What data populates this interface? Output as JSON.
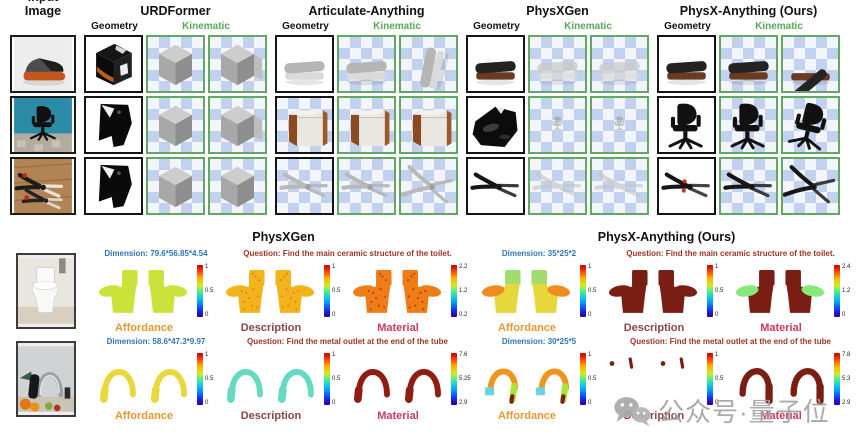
{
  "top": {
    "input_header": "Input Image",
    "methods": [
      {
        "name": "URDFormer",
        "bold": false
      },
      {
        "name": "Articulate-Anything",
        "bold": false
      },
      {
        "name": "PhysXGen",
        "bold": false
      },
      {
        "name": "PhysX-Anything (Ours)",
        "bold": true
      }
    ],
    "sub_geometry": "Geometry",
    "sub_kinematic": "Kinematic",
    "rows": [
      {
        "object": "stapler",
        "input_visual": "photo-stapler",
        "cells": [
          {
            "visual": "cube-textured",
            "bg": "white",
            "border": "geometry"
          },
          {
            "visual": "cube-gray",
            "bg": "checker",
            "border": "kinematic"
          },
          {
            "visual": "cube-gray-open",
            "bg": "checker",
            "border": "kinematic"
          },
          {
            "visual": "stapler-lightgray",
            "bg": "white",
            "border": "geometry"
          },
          {
            "visual": "stapler-lightgray",
            "bg": "checker",
            "border": "kinematic"
          },
          {
            "visual": "stapler-up-lightgray",
            "bg": "checker",
            "border": "kinematic"
          },
          {
            "visual": "stapler-dark",
            "bg": "white",
            "border": "geometry"
          },
          {
            "visual": "stapler-pale",
            "bg": "checker",
            "border": "kinematic"
          },
          {
            "visual": "stapler-pale",
            "bg": "checker",
            "border": "kinematic"
          },
          {
            "visual": "stapler-dark",
            "bg": "white",
            "border": "geometry"
          },
          {
            "visual": "stapler-dark",
            "bg": "checker",
            "border": "kinematic"
          },
          {
            "visual": "stapler-dark-open",
            "bg": "checker",
            "border": "kinematic"
          }
        ]
      },
      {
        "object": "chair",
        "input_visual": "photo-chair",
        "cells": [
          {
            "visual": "blob-dark",
            "bg": "white",
            "border": "geometry"
          },
          {
            "visual": "cube-gray",
            "bg": "checker",
            "border": "kinematic"
          },
          {
            "visual": "cube-gray-open",
            "bg": "checker",
            "border": "kinematic"
          },
          {
            "visual": "cabinet",
            "bg": "checker",
            "border": "geometry"
          },
          {
            "visual": "cabinet",
            "bg": "checker",
            "border": "kinematic"
          },
          {
            "visual": "cabinet",
            "bg": "checker",
            "border": "kinematic"
          },
          {
            "visual": "chair-blob",
            "bg": "white",
            "border": "geometry"
          },
          {
            "visual": "chair-tiny",
            "bg": "checker",
            "border": "kinematic"
          },
          {
            "visual": "chair-tiny",
            "bg": "checker",
            "border": "kinematic"
          },
          {
            "visual": "chair-black",
            "bg": "white",
            "border": "geometry"
          },
          {
            "visual": "chair-black",
            "bg": "checker",
            "border": "kinematic"
          },
          {
            "visual": "chair-black-tilt",
            "bg": "checker",
            "border": "kinematic"
          }
        ]
      },
      {
        "object": "pliers",
        "input_visual": "photo-pliers",
        "cells": [
          {
            "visual": "blob-dark",
            "bg": "white",
            "border": "geometry"
          },
          {
            "visual": "cube-gray",
            "bg": "checker",
            "border": "kinematic"
          },
          {
            "visual": "cube-gray",
            "bg": "checker",
            "border": "kinematic"
          },
          {
            "visual": "pliers-gray",
            "bg": "checker",
            "border": "geometry"
          },
          {
            "visual": "pliers-gray",
            "bg": "checker",
            "border": "kinematic"
          },
          {
            "visual": "pliers-gray-open",
            "bg": "checker",
            "border": "kinematic"
          },
          {
            "visual": "pliers-dark",
            "bg": "white",
            "border": "geometry"
          },
          {
            "visual": "pliers-pale",
            "bg": "checker",
            "border": "kinematic"
          },
          {
            "visual": "pliers-pale",
            "bg": "checker",
            "border": "kinematic"
          },
          {
            "visual": "pliers-dark-red",
            "bg": "white",
            "border": "geometry"
          },
          {
            "visual": "pliers-dark",
            "bg": "checker",
            "border": "kinematic"
          },
          {
            "visual": "pliers-dark-open",
            "bg": "checker",
            "border": "kinematic"
          }
        ]
      }
    ]
  },
  "bottom": {
    "panel_titles": [
      {
        "title": "PhysXGen",
        "bold": false
      },
      {
        "title": "PhysX-Anything (Ours)",
        "bold": true
      }
    ],
    "group_label_colors": {
      "Affordance": "#e8962e",
      "Description": "#8a4545",
      "Material": "#cc3a5c"
    },
    "rows": [
      {
        "object": "toilet",
        "input_visual": "photo-toilet",
        "sides": [
          {
            "dimension": "Dimension: 79.6*56.85*4.54",
            "question": "Question: Find the main ceramic structure of the toilet.",
            "groups": [
              {
                "label": "Affordance",
                "visual": "toilet",
                "scheme": "toilet_affordance_gen",
                "cbar": [
                  "1",
                  "0.5",
                  "0"
                ]
              },
              {
                "label": "Description",
                "visual": "toilet",
                "scheme": "toilet_description_gen",
                "cbar": [
                  "1",
                  "0.5",
                  "0"
                ]
              },
              {
                "label": "Material",
                "visual": "toilet",
                "scheme": "toilet_material_gen",
                "cbar": [
                  "2.2",
                  "1.2",
                  "0.2"
                ]
              }
            ]
          },
          {
            "dimension": "Dimension: 35*25*2",
            "question": "Question: Find the main ceramic structure of the toilet.",
            "groups": [
              {
                "label": "Affordance",
                "visual": "toilet",
                "scheme": "toilet_affordance_ours",
                "cbar": [
                  "1",
                  "0.5",
                  "0"
                ]
              },
              {
                "label": "Description",
                "visual": "toilet",
                "scheme": "toilet_description_ours",
                "cbar": [
                  "1",
                  "0.5",
                  "0"
                ]
              },
              {
                "label": "Material",
                "visual": "toilet",
                "scheme": "toilet_material_ours",
                "cbar": [
                  "2.4",
                  "1.2",
                  "0"
                ]
              }
            ]
          }
        ]
      },
      {
        "object": "faucet",
        "input_visual": "photo-faucet",
        "sides": [
          {
            "dimension": "Dimension: 58.6*47.3*9.97",
            "question": "Question: Find the metal outlet at the end of the tube",
            "groups": [
              {
                "label": "Affordance",
                "visual": "faucet",
                "scheme": "faucet_affordance_gen",
                "cbar": [
                  "1",
                  "0.5",
                  "0"
                ]
              },
              {
                "label": "Description",
                "visual": "faucet",
                "scheme": "faucet_description_gen",
                "cbar": [
                  "1",
                  "0.5",
                  "0"
                ]
              },
              {
                "label": "Material",
                "visual": "faucet",
                "scheme": "faucet_material_gen",
                "cbar": [
                  "7.6",
                  "5.25",
                  "2.9"
                ]
              }
            ]
          },
          {
            "dimension": "Dimension: 30*25*5",
            "question": "Question: Find the metal outlet at the end of the tube",
            "groups": [
              {
                "label": "Affordance",
                "visual": "faucet",
                "scheme": "faucet_affordance_ours",
                "cbar": [
                  "1",
                  "0.5",
                  "0"
                ]
              },
              {
                "label": "Description",
                "visual": "faucet-dots",
                "scheme": "faucet_description_ours",
                "cbar": [
                  "1",
                  "0.5",
                  "0"
                ]
              },
              {
                "label": "Material",
                "visual": "faucet-material-ours",
                "scheme": "faucet_material_ours",
                "cbar": [
                  "7.8",
                  "5.3",
                  "2.9"
                ]
              }
            ]
          }
        ]
      }
    ]
  },
  "colors": {
    "kinematic_text": "#58a758",
    "kinematic_border": "#62a862",
    "geometry_border": "#141414",
    "dimension_text": "#2e75b6",
    "question_text": "#9c3325",
    "checker_blue": "#c2d2ee"
  },
  "schemes": {
    "toilet_affordance_gen": {
      "all": "#cbe23a"
    },
    "toilet_description_gen": {
      "all": "#f2b31c",
      "speckle": "#e07d10"
    },
    "toilet_material_gen": {
      "all": "#ee7d18",
      "speckle": "#b8380e"
    },
    "toilet_affordance_ours": {
      "tank": "#9fdd6e",
      "seat": "#f08b1e",
      "body": "#e6d83c"
    },
    "toilet_description_ours": {
      "all": "#7a1d12"
    },
    "toilet_material_ours": {
      "all": "#7a1d12",
      "seat": "#86e878"
    },
    "faucet_affordance_gen": {
      "all": "#e8d83c"
    },
    "faucet_description_gen": {
      "all": "#66d9c2"
    },
    "faucet_material_gen": {
      "all": "#8f1d10"
    },
    "faucet_affordance_ours": {
      "arch": "#f0941e",
      "tip": "#6ad4e0",
      "stem": "#aae33c",
      "nozzle": "#7a1d12"
    },
    "faucet_description_ours": {
      "all": "#7a1d12"
    },
    "faucet_material_ours": {
      "all": "#7a1d12"
    }
  },
  "watermark": {
    "icon": "wechat-icon",
    "text": "公众号·量子位"
  }
}
